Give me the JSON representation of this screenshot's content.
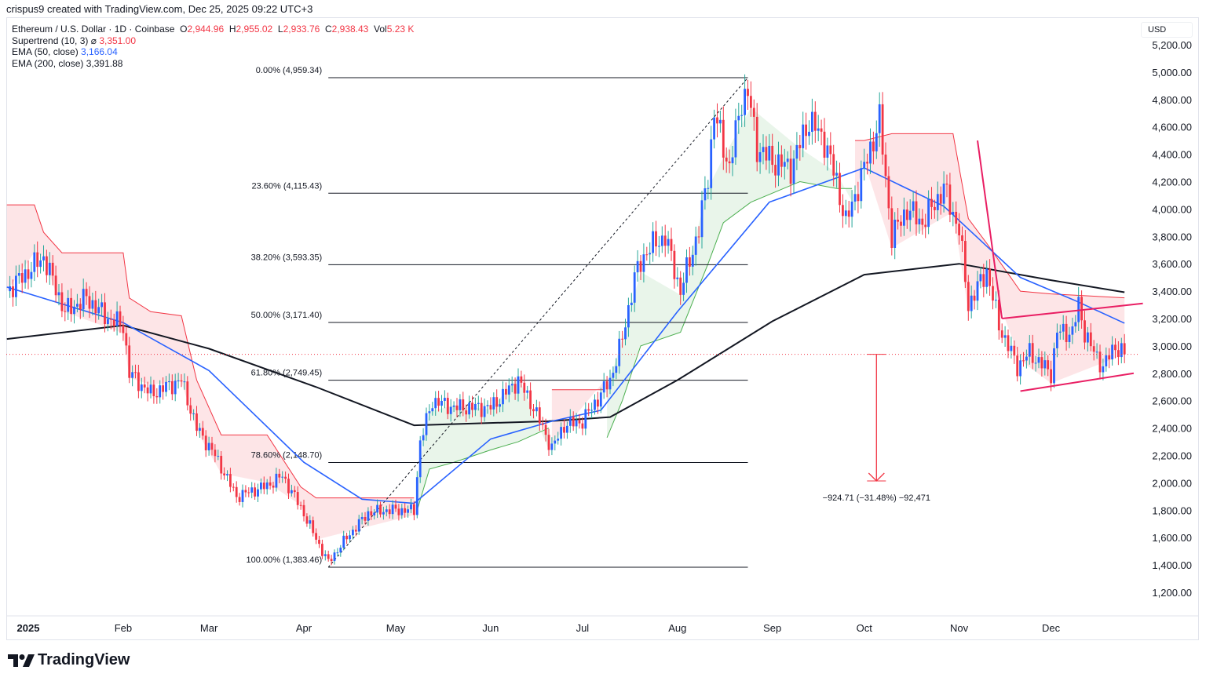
{
  "credit": "crispus9 created with TradingView.com, Dec 25, 2025 09:22 UTC+3",
  "legend": {
    "symbol": "Ethereum / U.S. Dollar · 1D · Coinbase",
    "o_label": "O",
    "o": "2,944.96",
    "h_label": "H",
    "h": "2,955.02",
    "l_label": "L",
    "l": "2,933.76",
    "c_label": "C",
    "c": "2,938.43",
    "vol_label": "Vol",
    "vol": "5.23 K",
    "supertrend_label": "Supertrend (10, 3)",
    "supertrend_icon": "hidden-eye-icon",
    "supertrend": "3,351.00",
    "ema50_label": "EMA (50, close)",
    "ema50": "3,166.04",
    "ema200_label": "EMA (200, close)",
    "ema200": "3,391.88"
  },
  "currency": "USD",
  "logo_text": "TradingView",
  "colors": {
    "up": "#2962ff",
    "up_wick": "#26a69a",
    "down": "#f23645",
    "ema50": "#2962ff",
    "ema200": "#131722",
    "st_up": "#4caf50",
    "st_down": "#f23645",
    "drawing": "#e91e63",
    "grid": "#f0f3fa"
  },
  "chart_data": {
    "type": "candlestick",
    "yaxis": {
      "min": 1100,
      "max": 5250,
      "ticks": [
        "5,200.00",
        "5,000.00",
        "4,800.00",
        "4,600.00",
        "4,400.00",
        "4,200.00",
        "4,000.00",
        "3,800.00",
        "3,600.00",
        "3,400.00",
        "3,200.00",
        "3,000.00",
        "2,800.00",
        "2,600.00",
        "2,400.00",
        "2,200.00",
        "2,000.00",
        "1,800.00",
        "1,600.00",
        "1,400.00",
        "1,200.00"
      ]
    },
    "xaxis": {
      "ticks": [
        {
          "label": "2025",
          "date": "2025-01-01",
          "bold": true
        },
        {
          "label": "Feb",
          "date": "2025-02-01"
        },
        {
          "label": "Mar",
          "date": "2025-03-01"
        },
        {
          "label": "Apr",
          "date": "2025-04-01"
        },
        {
          "label": "May",
          "date": "2025-05-01"
        },
        {
          "label": "Jun",
          "date": "2025-06-01"
        },
        {
          "label": "Jul",
          "date": "2025-07-01"
        },
        {
          "label": "Aug",
          "date": "2025-08-01"
        },
        {
          "label": "Sep",
          "date": "2025-09-01"
        },
        {
          "label": "Oct",
          "date": "2025-10-01"
        },
        {
          "label": "Nov",
          "date": "2025-11-01"
        },
        {
          "label": "Dec",
          "date": "2025-12-01"
        }
      ]
    },
    "close_path": [
      [
        "2024-12-25",
        3400
      ],
      [
        "2025-01-06",
        3650
      ],
      [
        "2025-01-13",
        3250
      ],
      [
        "2025-01-20",
        3350
      ],
      [
        "2025-01-27",
        3200
      ],
      [
        "2025-02-01",
        3150
      ],
      [
        "2025-02-03",
        2800
      ],
      [
        "2025-02-10",
        2650
      ],
      [
        "2025-02-20",
        2750
      ],
      [
        "2025-02-25",
        2400
      ],
      [
        "2025-03-03",
        2200
      ],
      [
        "2025-03-10",
        1900
      ],
      [
        "2025-03-20",
        1980
      ],
      [
        "2025-03-25",
        2050
      ],
      [
        "2025-03-31",
        1820
      ],
      [
        "2025-04-07",
        1500
      ],
      [
        "2025-04-09",
        1420
      ],
      [
        "2025-04-15",
        1600
      ],
      [
        "2025-04-22",
        1780
      ],
      [
        "2025-04-28",
        1800
      ],
      [
        "2025-05-07",
        1800
      ],
      [
        "2025-05-09",
        2300
      ],
      [
        "2025-05-13",
        2600
      ],
      [
        "2025-05-20",
        2550
      ],
      [
        "2025-06-01",
        2550
      ],
      [
        "2025-06-10",
        2750
      ],
      [
        "2025-06-15",
        2550
      ],
      [
        "2025-06-21",
        2250
      ],
      [
        "2025-06-25",
        2420
      ],
      [
        "2025-07-01",
        2450
      ],
      [
        "2025-07-10",
        2750
      ],
      [
        "2025-07-14",
        3050
      ],
      [
        "2025-07-18",
        3500
      ],
      [
        "2025-07-22",
        3700
      ],
      [
        "2025-07-28",
        3800
      ],
      [
        "2025-08-02",
        3400
      ],
      [
        "2025-08-08",
        3850
      ],
      [
        "2025-08-11",
        4250
      ],
      [
        "2025-08-13",
        4700
      ],
      [
        "2025-08-18",
        4300
      ],
      [
        "2025-08-22",
        4800
      ],
      [
        "2025-08-24",
        4850
      ],
      [
        "2025-08-27",
        4450
      ],
      [
        "2025-09-01",
        4350
      ],
      [
        "2025-09-07",
        4300
      ],
      [
        "2025-09-13",
        4650
      ],
      [
        "2025-09-18",
        4500
      ],
      [
        "2025-09-22",
        4200
      ],
      [
        "2025-09-25",
        3900
      ],
      [
        "2025-10-01",
        4300
      ],
      [
        "2025-10-06",
        4650
      ],
      [
        "2025-10-10",
        3800
      ],
      [
        "2025-10-15",
        4000
      ],
      [
        "2025-10-20",
        3900
      ],
      [
        "2025-10-27",
        4150
      ],
      [
        "2025-11-01",
        3850
      ],
      [
        "2025-11-04",
        3300
      ],
      [
        "2025-11-10",
        3550
      ],
      [
        "2025-11-14",
        3150
      ],
      [
        "2025-11-20",
        2850
      ],
      [
        "2025-11-24",
        2950
      ],
      [
        "2025-12-01",
        2800
      ],
      [
        "2025-12-03",
        3100
      ],
      [
        "2025-12-08",
        3100
      ],
      [
        "2025-12-10",
        3300
      ],
      [
        "2025-12-12",
        3100
      ],
      [
        "2025-12-15",
        2950
      ],
      [
        "2025-12-18",
        2850
      ],
      [
        "2025-12-22",
        3000
      ],
      [
        "2025-12-25",
        2938
      ]
    ],
    "ema50": [
      [
        "2024-12-25",
        3430
      ],
      [
        "2025-02-01",
        3170
      ],
      [
        "2025-03-01",
        2820
      ],
      [
        "2025-04-01",
        2150
      ],
      [
        "2025-04-20",
        1880
      ],
      [
        "2025-05-07",
        1850
      ],
      [
        "2025-06-01",
        2320
      ],
      [
        "2025-06-21",
        2450
      ],
      [
        "2025-07-07",
        2530
      ],
      [
        "2025-08-01",
        3250
      ],
      [
        "2025-08-31",
        4050
      ],
      [
        "2025-10-01",
        4300
      ],
      [
        "2025-10-27",
        4020
      ],
      [
        "2025-11-21",
        3500
      ],
      [
        "2025-12-09",
        3330
      ],
      [
        "2025-12-25",
        3166
      ]
    ],
    "ema200": [
      [
        "2024-12-25",
        3050
      ],
      [
        "2025-02-01",
        3150
      ],
      [
        "2025-03-01",
        2980
      ],
      [
        "2025-04-05",
        2700
      ],
      [
        "2025-05-07",
        2420
      ],
      [
        "2025-06-20",
        2450
      ],
      [
        "2025-07-10",
        2480
      ],
      [
        "2025-08-01",
        2750
      ],
      [
        "2025-09-01",
        3180
      ],
      [
        "2025-10-01",
        3520
      ],
      [
        "2025-11-01",
        3600
      ],
      [
        "2025-12-01",
        3480
      ],
      [
        "2025-12-25",
        3392
      ]
    ],
    "supertrend": [
      {
        "dir": "down",
        "points": [
          [
            "2024-12-25",
            4030
          ],
          [
            "2025-01-03",
            4030
          ],
          [
            "2025-01-06",
            3830
          ],
          [
            "2025-01-12",
            3680
          ],
          [
            "2025-02-01",
            3680
          ],
          [
            "2025-02-03",
            3350
          ],
          [
            "2025-02-10",
            3250
          ],
          [
            "2025-02-20",
            3220
          ],
          [
            "2025-02-25",
            2750
          ],
          [
            "2025-03-05",
            2350
          ],
          [
            "2025-03-20",
            2350
          ],
          [
            "2025-03-31",
            1970
          ],
          [
            "2025-04-05",
            1890
          ],
          [
            "2025-05-07",
            1890
          ]
        ]
      },
      {
        "dir": "up",
        "points": [
          [
            "2025-05-08",
            1800
          ],
          [
            "2025-05-12",
            2100
          ],
          [
            "2025-05-20",
            2150
          ],
          [
            "2025-06-01",
            2240
          ],
          [
            "2025-06-10",
            2300
          ],
          [
            "2025-06-20",
            2400
          ]
        ]
      },
      {
        "dir": "down",
        "points": [
          [
            "2025-06-21",
            2680
          ],
          [
            "2025-07-08",
            2680
          ]
        ]
      },
      {
        "dir": "up",
        "points": [
          [
            "2025-07-09",
            2330
          ],
          [
            "2025-07-14",
            2600
          ],
          [
            "2025-07-20",
            3000
          ],
          [
            "2025-08-02",
            3100
          ],
          [
            "2025-08-11",
            3600
          ],
          [
            "2025-08-16",
            3900
          ],
          [
            "2025-08-25",
            4050
          ],
          [
            "2025-09-10",
            4200
          ],
          [
            "2025-09-22",
            4150
          ],
          [
            "2025-09-27",
            4150
          ]
        ]
      },
      {
        "dir": "down",
        "points": [
          [
            "2025-09-28",
            4500
          ],
          [
            "2025-10-01",
            4500
          ],
          [
            "2025-10-10",
            4550
          ],
          [
            "2025-10-30",
            4550
          ],
          [
            "2025-11-04",
            3930
          ],
          [
            "2025-11-10",
            3750
          ],
          [
            "2025-11-21",
            3400
          ],
          [
            "2025-12-01",
            3380
          ],
          [
            "2025-12-25",
            3351
          ]
        ]
      }
    ],
    "fibonacci": {
      "from": "2025-04-09",
      "to": "2025-08-24",
      "levels": [
        {
          "label": "0.00% (4,959.34)",
          "price": 4959.34
        },
        {
          "label": "23.60% (4,115.43)",
          "price": 4115.43
        },
        {
          "label": "38.20% (3,593.35)",
          "price": 3593.35
        },
        {
          "label": "50.00% (3,171.40)",
          "price": 3171.4
        },
        {
          "label": "61.80% (2,749.45)",
          "price": 2749.45
        },
        {
          "label": "78.60% (2,148.70)",
          "price": 2148.7
        },
        {
          "label": "100.00% (1,383.46)",
          "price": 1383.46
        }
      ]
    },
    "measure": {
      "date": "2025-10-05",
      "from": 2938.43,
      "to": 2013.72,
      "label": "−924.71 (−31.48%) −92,471"
    },
    "trendlines": [
      {
        "a": [
          "2025-11-07",
          4500
        ],
        "b": [
          "2025-11-15",
          3200
        ]
      },
      {
        "a": [
          "2025-11-15",
          3200
        ],
        "b": [
          "2025-12-31",
          3310
        ]
      },
      {
        "a": [
          "2025-11-21",
          2670
        ],
        "b": [
          "2025-12-28",
          2800
        ]
      }
    ],
    "last_price": 2938.43
  }
}
